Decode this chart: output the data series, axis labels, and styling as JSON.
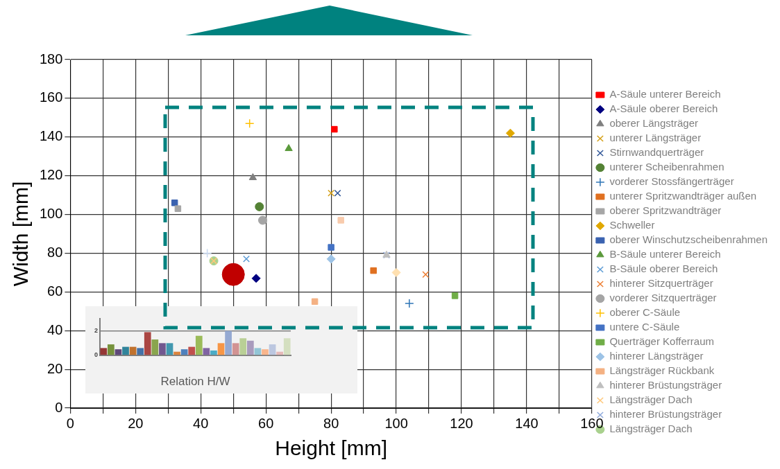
{
  "chart_data": [
    {
      "type": "scatter",
      "xlabel": "Height [mm]",
      "ylabel": "Width [mm]",
      "xlim": [
        0,
        160
      ],
      "ylim": [
        0,
        180
      ],
      "xticks": [
        0,
        {
          "value": 10,
          "label": null
        },
        20,
        {
          "value": 30,
          "label": null
        },
        40,
        {
          "value": 50,
          "label": null
        },
        60,
        {
          "value": 70,
          "label": null
        },
        80,
        {
          "value": 90,
          "label": null
        },
        100,
        {
          "value": 110,
          "label": null
        },
        120,
        {
          "value": 130,
          "label": null
        },
        140,
        {
          "value": 150,
          "label": null
        },
        160
      ],
      "yticks": [
        0,
        20,
        40,
        60,
        80,
        100,
        120,
        140,
        160,
        180
      ],
      "grid": true,
      "legend": "right",
      "series": [
        {
          "name": "A-Säule unterer Bereich",
          "color": "#ff0000",
          "marker": "square",
          "x": [
            81
          ],
          "values": [
            144
          ]
        },
        {
          "name": "A-Säule oberer Bereich",
          "color": "#000080",
          "marker": "diamond",
          "x": [
            57
          ],
          "values": [
            67
          ]
        },
        {
          "name": "oberer Längsträger",
          "color": "#7f7f7f",
          "marker": "triangle",
          "x": [
            56
          ],
          "values": [
            119
          ]
        },
        {
          "name": "unterer Längsträger",
          "color": "#d4a017",
          "marker": "cross",
          "x": [
            80
          ],
          "values": [
            111
          ]
        },
        {
          "name": "Stirnwandquerträger",
          "color": "#2f5597",
          "marker": "cross",
          "x": [
            82
          ],
          "values": [
            111
          ]
        },
        {
          "name": "unterer Scheibenrahmen",
          "color": "#548235",
          "marker": "circle",
          "x": [
            58
          ],
          "values": [
            104
          ]
        },
        {
          "name": "vorderer Stossfängerträger",
          "color": "#2e75b6",
          "marker": "plus",
          "x": [
            104
          ],
          "values": [
            54
          ]
        },
        {
          "name": "unterer Spritzwandträger außen",
          "color": "#e07020",
          "marker": "square",
          "x": [
            93
          ],
          "values": [
            71
          ]
        },
        {
          "name": "oberer Spritzwandträger",
          "color": "#a6a6a6",
          "marker": "square",
          "x": [
            33
          ],
          "values": [
            103
          ]
        },
        {
          "name": "Schweller",
          "color": "#e0a800",
          "marker": "diamond",
          "x": [
            135
          ],
          "values": [
            142
          ]
        },
        {
          "name": "oberer Winschutzscheibenrahmen",
          "color": "#3a62b0",
          "marker": "square",
          "x": [
            32
          ],
          "values": [
            106
          ]
        },
        {
          "name": "B-Säule unterer Bereich",
          "color": "#5b9a3c",
          "marker": "triangle",
          "x": [
            67
          ],
          "values": [
            134
          ]
        },
        {
          "name": "B-Säule oberer Bereich",
          "color": "#5b9bd5",
          "marker": "cross",
          "x": [
            54
          ],
          "values": [
            77
          ]
        },
        {
          "name": "hinterer Sitzquerträger",
          "color": "#ed7d31",
          "marker": "cross",
          "x": [
            109
          ],
          "values": [
            69
          ]
        },
        {
          "name": "vorderer Sitzquerträger",
          "color": "#a5a5a5",
          "marker": "circle",
          "x": [
            59
          ],
          "values": [
            97
          ]
        },
        {
          "name": "oberer C-Säule",
          "color": "#ffc000",
          "marker": "plus",
          "x": [
            55
          ],
          "values": [
            147
          ]
        },
        {
          "name": "untere C-Säule",
          "color": "#4472c4",
          "marker": "square",
          "x": [
            80
          ],
          "values": [
            83
          ]
        },
        {
          "name": "Querträger Kofferraum",
          "color": "#70ad47",
          "marker": "square",
          "x": [
            118
          ],
          "values": [
            58
          ]
        },
        {
          "name": "hinterer Längsträger",
          "color": "#9dc3e6",
          "marker": "diamond",
          "x": [
            80
          ],
          "values": [
            77
          ]
        },
        {
          "name": "Längsträger Rückbank",
          "color": "#f4b183",
          "marker": "square",
          "x": [
            75
          ],
          "values": [
            55
          ]
        },
        {
          "name": "hinterer Brüstungsträger",
          "color": "#bfbfbf",
          "marker": "triangle",
          "x": [
            97
          ],
          "values": [
            79
          ]
        },
        {
          "name": "Längsträger Dach",
          "color": "#ffc87a",
          "marker": "cross",
          "x": [
            44
          ],
          "values": [
            76
          ]
        },
        {
          "name": "hinterer Brüstungsträger",
          "color": "#8faadc",
          "marker": "cross",
          "x": [
            97
          ],
          "values": [
            79
          ]
        },
        {
          "name": "Längsträger Dach",
          "color": "#a9d18e",
          "marker": "circle",
          "x": [
            44
          ],
          "values": [
            76
          ]
        },
        {
          "color": "#c8d8f0",
          "marker": "plus",
          "x": [
            42
          ],
          "values": [
            80
          ]
        },
        {
          "type": "bubble",
          "color": "#c00000",
          "x": [
            50
          ],
          "values": [
            69
          ],
          "sizes": [
            1
          ]
        },
        {
          "color": "#f8cbad",
          "marker": "square",
          "x": [
            83
          ],
          "values": [
            97
          ]
        },
        {
          "color": "#ffe0b0",
          "marker": "diamond",
          "x": [
            100
          ],
          "values": [
            70
          ]
        }
      ]
    },
    {
      "type": "bar",
      "xlabel": "Relation H/W",
      "categories": [
        null,
        null,
        null,
        null,
        null,
        null,
        null,
        null,
        null,
        null,
        null,
        null,
        null,
        null,
        null,
        null,
        null,
        null,
        null,
        null,
        null,
        null,
        null,
        null,
        null,
        null
      ],
      "values": [
        0.6,
        0.9,
        0.5,
        0.7,
        0.7,
        0.6,
        1.9,
        1.3,
        1.0,
        1.0,
        0.3,
        0.5,
        0.7,
        1.6,
        0.6,
        0.4,
        1.0,
        2.0,
        1.0,
        1.4,
        1.2,
        0.6,
        0.5,
        0.9,
        0.3,
        1.4
      ],
      "colors": [
        "#953735",
        "#76923c",
        "#5f497a",
        "#31849b",
        "#c0722e",
        "#4472a8",
        "#aa4643",
        "#89a54e",
        "#71588f",
        "#4198af",
        "#db843d",
        "#4f81bd",
        "#c0504d",
        "#9bbb59",
        "#8064a2",
        "#4bacc6",
        "#f79646",
        "#95a9d2",
        "#d29393",
        "#b9cf96",
        "#a99bbd",
        "#92c5d6",
        "#f9b58c",
        "#bcc7e0",
        "#e6b9b8",
        "#d4dfc0"
      ],
      "ylim": [
        0,
        3
      ],
      "yticks": [
        0,
        2
      ],
      "grid": "y"
    }
  ]
}
